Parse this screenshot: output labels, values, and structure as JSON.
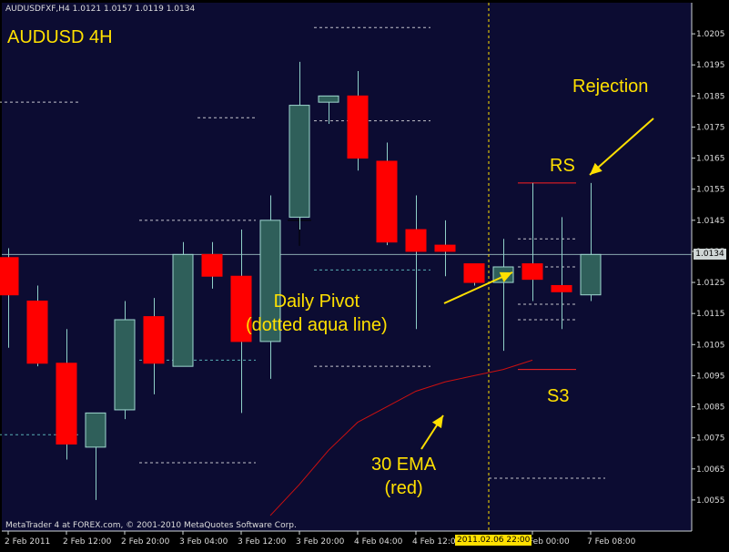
{
  "header": {
    "symbol_line": "AUDUSDFXF,H4  1.0121 1.0157 1.0119 1.0134",
    "title": "AUDUSD 4H",
    "copyright": "MetaTrader 4 at FOREX.com, © 2001-2010 MetaQuotes Software Corp."
  },
  "annotations": {
    "rejection": "Rejection",
    "rs": "RS",
    "pivot_line1": "Daily Pivot",
    "pivot_line2": "(dotted aqua line)",
    "s3": "S3",
    "ema_line1": "30 EMA",
    "ema_line2": "(red)"
  },
  "chart_data": {
    "type": "candlestick",
    "symbol": "AUDUSDFXF",
    "timeframe": "H4",
    "ylim": [
      1.0045,
      1.0215
    ],
    "y_ticks": [
      1.0055,
      1.0065,
      1.0075,
      1.0085,
      1.0095,
      1.0105,
      1.0115,
      1.0125,
      1.0135,
      1.0145,
      1.0155,
      1.0165,
      1.0175,
      1.0185,
      1.0195,
      1.0205
    ],
    "current_price": "1.0134",
    "current_price_value": 1.0134,
    "current_time_label": "2011.02.06 22:00",
    "x_labels": [
      "2 Feb 2011",
      "2 Feb 12:00",
      "2 Feb 20:00",
      "3 Feb 04:00",
      "3 Feb 12:00",
      "3 Feb 20:00",
      "4 Feb 04:00",
      "4 Feb 12:00",
      "Feb 00:00",
      "7 Feb 08:00"
    ],
    "x_label_bars": [
      0,
      2,
      4,
      6,
      8,
      10,
      12,
      14,
      18,
      20
    ],
    "current_time_bar": 16.5,
    "candles": [
      {
        "o": 1.0133,
        "h": 1.0136,
        "l": 1.0104,
        "c": 1.0121
      },
      {
        "o": 1.0119,
        "h": 1.0124,
        "l": 1.0098,
        "c": 1.0099
      },
      {
        "o": 1.0099,
        "h": 1.011,
        "l": 1.0068,
        "c": 1.0073
      },
      {
        "o": 1.0072,
        "h": 1.0083,
        "l": 1.0055,
        "c": 1.0083
      },
      {
        "o": 1.0084,
        "h": 1.0119,
        "l": 1.0081,
        "c": 1.0113
      },
      {
        "o": 1.0114,
        "h": 1.012,
        "l": 1.0089,
        "c": 1.0099
      },
      {
        "o": 1.0098,
        "h": 1.0138,
        "l": 1.0098,
        "c": 1.0134
      },
      {
        "o": 1.0134,
        "h": 1.0138,
        "l": 1.0123,
        "c": 1.0127
      },
      {
        "o": 1.0127,
        "h": 1.0142,
        "l": 1.0083,
        "c": 1.0106
      },
      {
        "o": 1.0106,
        "h": 1.0153,
        "l": 1.0094,
        "c": 1.0145
      },
      {
        "o": 1.0146,
        "h": 1.0196,
        "l": 1.0142,
        "c": 1.0182
      },
      {
        "o": 1.0183,
        "h": 1.0185,
        "l": 1.0176,
        "c": 1.0185
      },
      {
        "o": 1.0185,
        "h": 1.0193,
        "l": 1.0161,
        "c": 1.0165
      },
      {
        "o": 1.0164,
        "h": 1.017,
        "l": 1.0137,
        "c": 1.0138
      },
      {
        "o": 1.0142,
        "h": 1.0153,
        "l": 1.011,
        "c": 1.0135
      },
      {
        "o": 1.0137,
        "h": 1.0145,
        "l": 1.0127,
        "c": 1.0135
      },
      {
        "o": 1.0131,
        "h": 1.0131,
        "l": 1.0124,
        "c": 1.0125
      },
      {
        "o": 1.0125,
        "h": 1.0139,
        "l": 1.0103,
        "c": 1.013
      },
      {
        "o": 1.0131,
        "h": 1.0157,
        "l": 1.0119,
        "c": 1.0126
      },
      {
        "o": 1.0124,
        "h": 1.0146,
        "l": 1.011,
        "c": 1.0122
      },
      {
        "o": 1.0121,
        "h": 1.0157,
        "l": 1.0119,
        "c": 1.0134
      }
    ],
    "ema": {
      "name": "30 EMA",
      "color": "#cc1010",
      "start_bar": 9,
      "values": [
        1.005,
        1.006,
        1.0071,
        1.008,
        1.0085,
        1.009,
        1.0093,
        1.0095,
        1.0097,
        1.01
      ]
    },
    "pivot_levels": [
      {
        "bar_from": -0.5,
        "bar_to": 2.5,
        "value": 1.0183,
        "style": "white"
      },
      {
        "bar_from": -0.5,
        "bar_to": 2.5,
        "value": 1.0076,
        "style": "aqua"
      },
      {
        "bar_from": 4.5,
        "bar_to": 8.5,
        "value": 1.0145,
        "style": "white"
      },
      {
        "bar_from": 4.5,
        "bar_to": 8.5,
        "value": 1.01,
        "style": "aqua"
      },
      {
        "bar_from": 4.5,
        "bar_to": 8.5,
        "value": 1.0067,
        "style": "white"
      },
      {
        "bar_from": 6.5,
        "bar_to": 8.5,
        "value": 1.0178,
        "style": "white"
      },
      {
        "bar_from": 10.5,
        "bar_to": 14.5,
        "value": 1.0207,
        "style": "white"
      },
      {
        "bar_from": 10.5,
        "bar_to": 14.5,
        "value": 1.0177,
        "style": "white"
      },
      {
        "bar_from": 10.5,
        "bar_to": 14.5,
        "value": 1.0129,
        "style": "aqua"
      },
      {
        "bar_from": 10.5,
        "bar_to": 14.5,
        "value": 1.0098,
        "style": "white"
      },
      {
        "bar_from": 17.5,
        "bar_to": 19.5,
        "value": 1.0139,
        "style": "white"
      },
      {
        "bar_from": 17.5,
        "bar_to": 19.5,
        "value": 1.013,
        "style": "white"
      },
      {
        "bar_from": 17.5,
        "bar_to": 19.5,
        "value": 1.0118,
        "style": "white"
      },
      {
        "bar_from": 17.5,
        "bar_to": 19.5,
        "value": 1.0113,
        "style": "white"
      },
      {
        "bar_from": 16.5,
        "bar_to": 20.5,
        "value": 1.0062,
        "style": "white"
      }
    ],
    "resistance_line": {
      "bar_from": 17.5,
      "bar_to": 19.5,
      "value": 1.0157,
      "label": "RS",
      "color": "#ff2020"
    },
    "support_line": {
      "bar_from": 17.5,
      "bar_to": 19.5,
      "value": 1.0097,
      "label": "S3",
      "color": "#ff2020"
    },
    "crosshair": {
      "bar": 10,
      "value": 1.0145
    }
  },
  "colors": {
    "background": "#0c0c32",
    "bull": "#2f5f5a",
    "bull_border": "#9fd7d0",
    "bear": "#ff0000",
    "bear_border": "#ff0000",
    "wick": "#8fd0c8",
    "grid": "#ffffff",
    "aqua_level": "#66cccc",
    "price_line": "#8aa8b0",
    "current_time": "#ffe000",
    "annotation": "#ffe000"
  }
}
